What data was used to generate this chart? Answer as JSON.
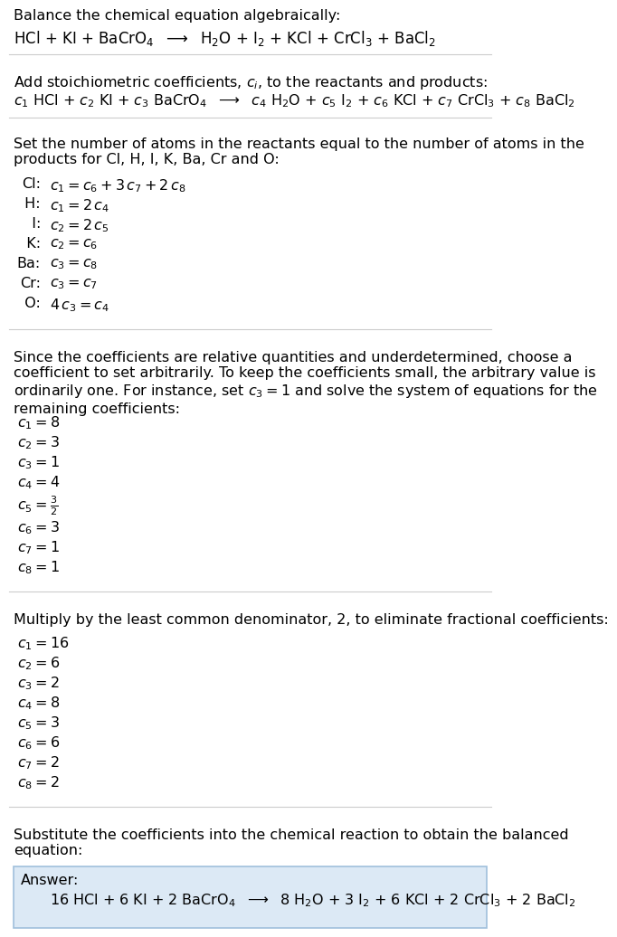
{
  "title_section": "Balance the chemical equation algebraically:",
  "equation_line": "HCl + KI + BaCrO$_4$  $\\longrightarrow$  H$_2$O + I$_2$ + KCl + CrCl$_3$ + BaCl$_2$",
  "section2_title": "Add stoichiometric coefficients, $c_i$, to the reactants and products:",
  "equation2_line": "$c_1$ HCl + $c_2$ KI + $c_3$ BaCrO$_4$  $\\longrightarrow$  $c_4$ H$_2$O + $c_5$ I$_2$ + $c_6$ KCl + $c_7$ CrCl$_3$ + $c_8$ BaCl$_2$",
  "section3_title": "Set the number of atoms in the reactants equal to the number of atoms in the\nproducts for Cl, H, I, K, Ba, Cr and O:",
  "atom_labels": [
    "Cl:",
    " H:",
    "  I:",
    "  K:",
    "Ba:",
    "Cr:",
    "  O:"
  ],
  "atom_eqs": [
    "$c_1 = c_6 + 3\\,c_7 + 2\\,c_8$",
    "$c_1 = 2\\,c_4$",
    "$c_2 = 2\\,c_5$",
    "$c_2 = c_6$",
    "$c_3 = c_8$",
    "$c_3 = c_7$",
    "$4\\,c_3 = c_4$"
  ],
  "section4_title": "Since the coefficients are relative quantities and underdetermined, choose a\ncoefficient to set arbitrarily. To keep the coefficients small, the arbitrary value is\nordinarily one. For instance, set $c_3 = 1$ and solve the system of equations for the\nremaining coefficients:",
  "coefficients1": [
    "$c_1 = 8$",
    "$c_2 = 3$",
    "$c_3 = 1$",
    "$c_4 = 4$",
    "$c_5 = \\frac{3}{2}$",
    "$c_6 = 3$",
    "$c_7 = 1$",
    "$c_8 = 1$"
  ],
  "section5_title": "Multiply by the least common denominator, 2, to eliminate fractional coefficients:",
  "coefficients2": [
    "$c_1 = 16$",
    "$c_2 = 6$",
    "$c_3 = 2$",
    "$c_4 = 8$",
    "$c_5 = 3$",
    "$c_6 = 6$",
    "$c_7 = 2$",
    "$c_8 = 2$"
  ],
  "section6_title": "Substitute the coefficients into the chemical reaction to obtain the balanced\nequation:",
  "answer_label": "Answer:",
  "answer_eq": "16 HCl + 6 KI + 2 BaCrO$_4$  $\\longrightarrow$  8 H$_2$O + 3 I$_2$ + 6 KCl + 2 CrCl$_3$ + 2 BaCl$_2$",
  "bg_color": "#ffffff",
  "text_color": "#000000",
  "answer_box_facecolor": "#dce9f5",
  "answer_box_edgecolor": "#a0c0dc",
  "separator_color": "#cccccc",
  "font_size": 11.5
}
